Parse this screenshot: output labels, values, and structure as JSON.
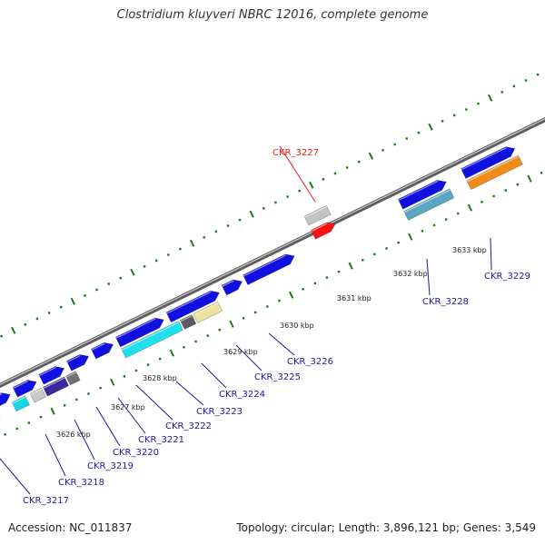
{
  "title": "Clostridium kluyveri NBRC 12016, complete genome",
  "footer": {
    "accession": "Accession: NC_011837",
    "summary": "Topology: circular; Length: 3,896,121 bp; Genes: 3,549"
  },
  "colors": {
    "forward": "#1010e0",
    "highlight": "#ff1010",
    "axis": "#808080",
    "ticks": "#1a7a1a",
    "label_default": "#1a1aa0",
    "label_highlight": "#e02020"
  },
  "scale_labels": [
    "3626 kbp",
    "3627 kbp",
    "3628 kbp",
    "3629 kbp",
    "3630 kbp",
    "3631 kbp",
    "3632 kbp",
    "3633 kbp"
  ],
  "genes": [
    {
      "id": "CKR_3217",
      "label": "CKR_3217"
    },
    {
      "id": "CKR_3218",
      "label": "CKR_3218"
    },
    {
      "id": "CKR_3219",
      "label": "CKR_3219"
    },
    {
      "id": "CKR_3220",
      "label": "CKR_3220"
    },
    {
      "id": "CKR_3221",
      "label": "CKR_3221"
    },
    {
      "id": "CKR_3222",
      "label": "CKR_3222"
    },
    {
      "id": "CKR_3223",
      "label": "CKR_3223"
    },
    {
      "id": "CKR_3224",
      "label": "CKR_3224"
    },
    {
      "id": "CKR_3225",
      "label": "CKR_3225"
    },
    {
      "id": "CKR_3226",
      "label": "CKR_3226"
    },
    {
      "id": "CKR_3227",
      "label": "CKR_3227",
      "highlighted": true
    },
    {
      "id": "CKR_3228",
      "label": "CKR_3228"
    },
    {
      "id": "CKR_3229",
      "label": "CKR_3229"
    }
  ]
}
